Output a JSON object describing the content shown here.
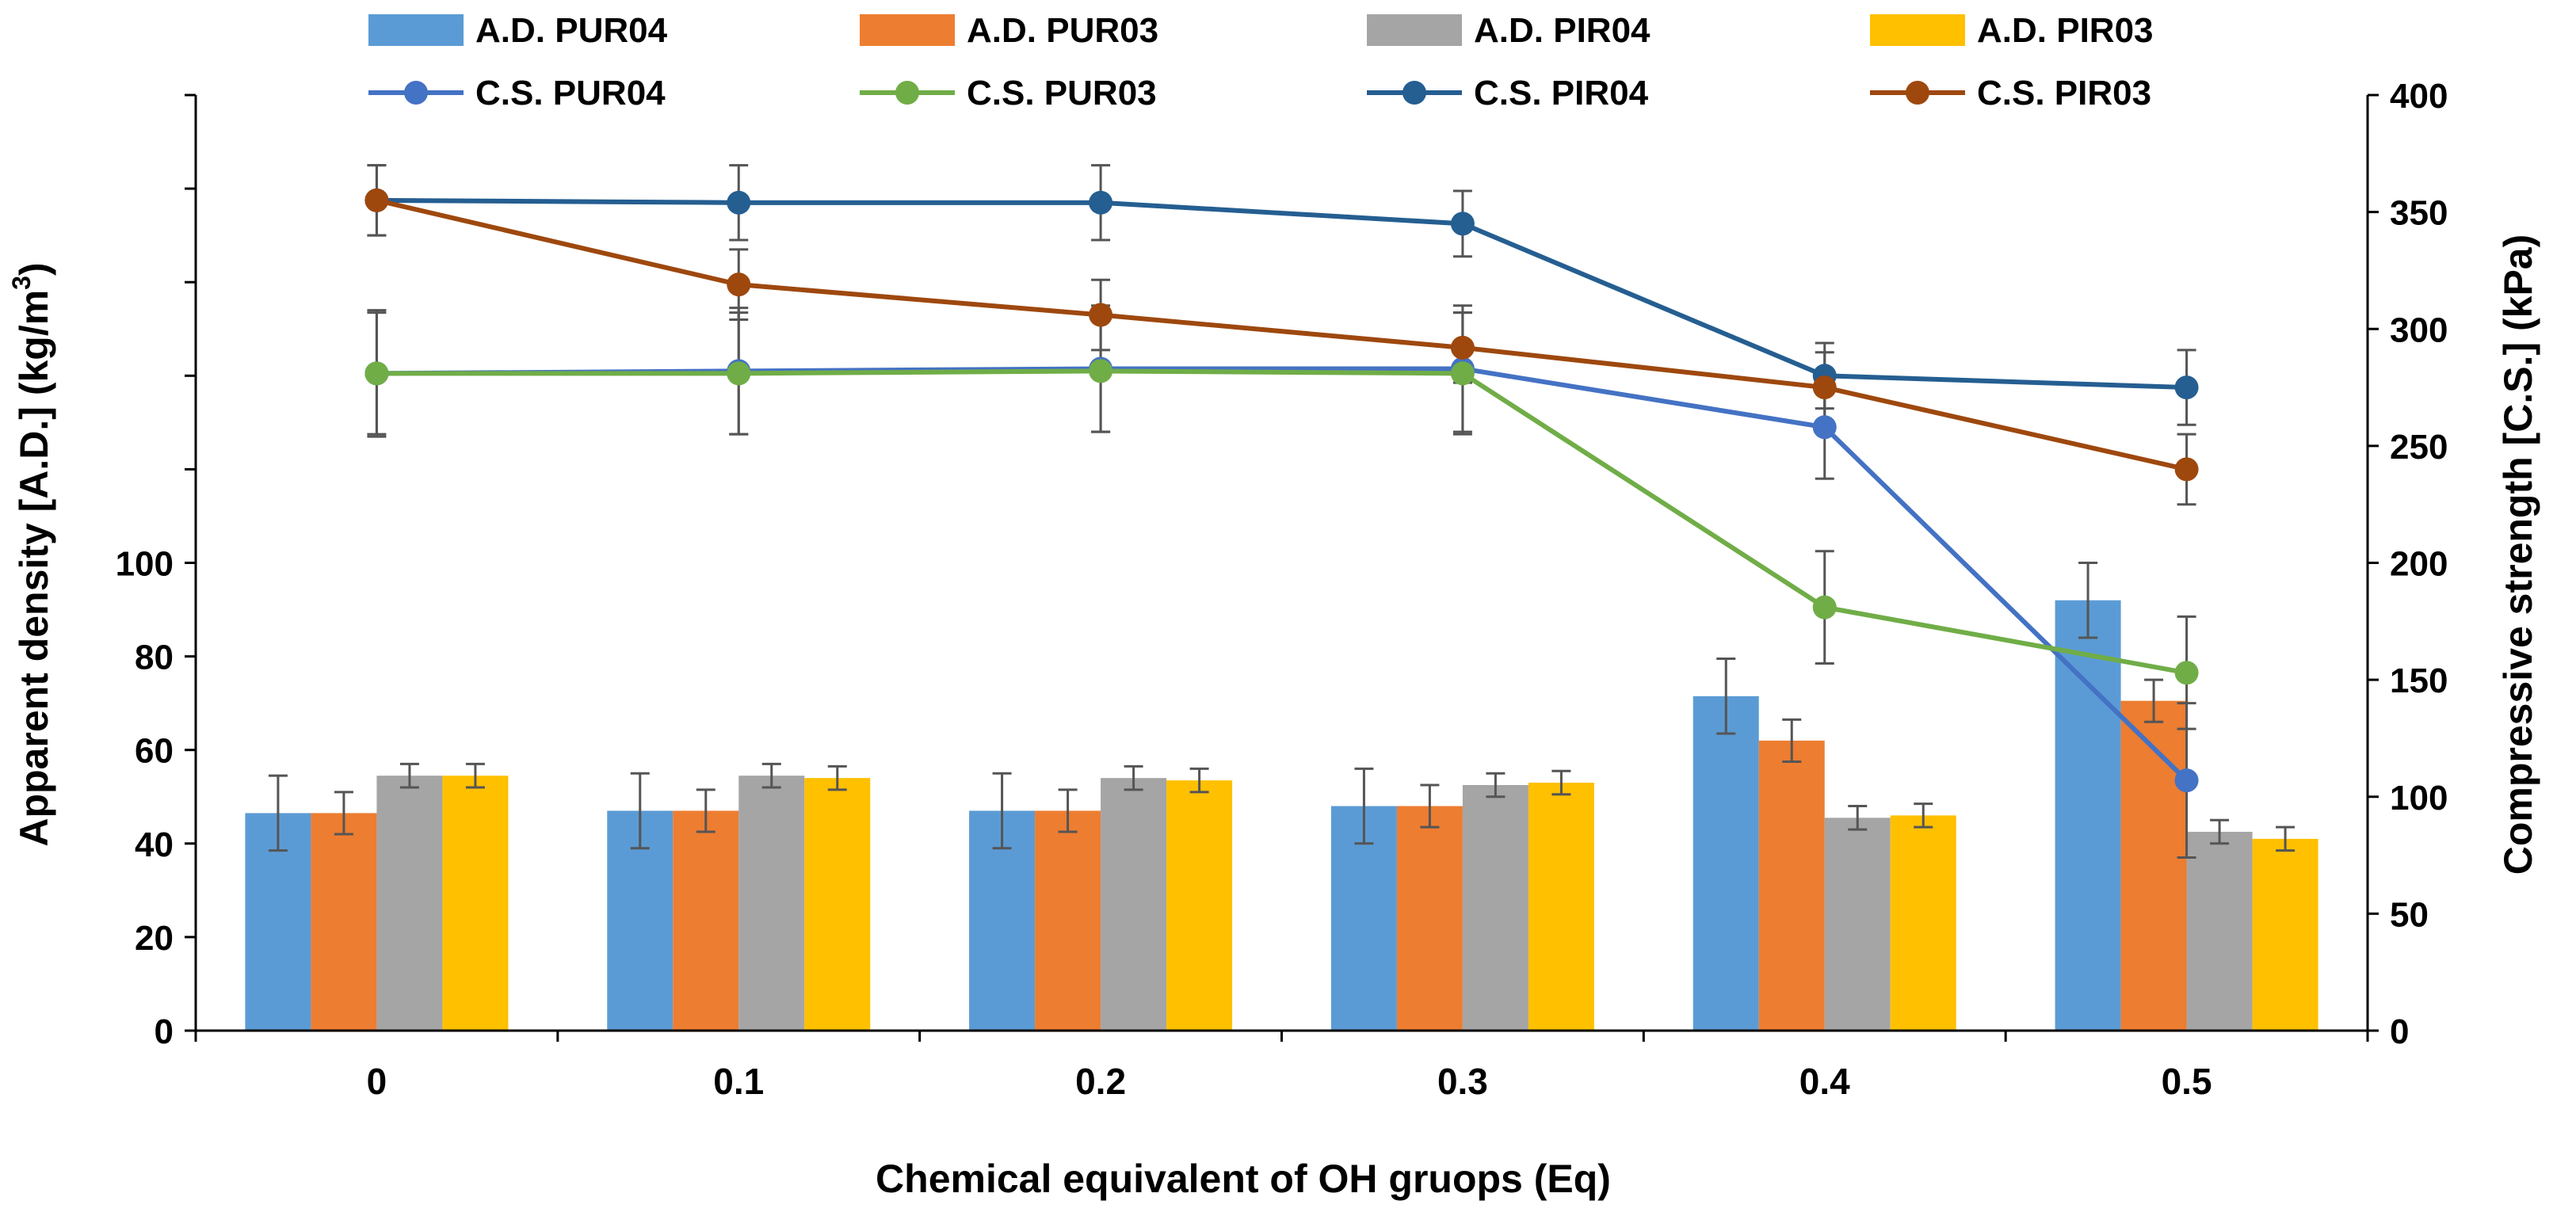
{
  "chart_data": {
    "type": "bar+line",
    "x": {
      "label": "Chemical equivalent of OH gruops (Eq)",
      "categories": [
        "0",
        "0.1",
        "0.2",
        "0.3",
        "0.4",
        "0.5"
      ]
    },
    "y_left": {
      "label_main": "Apparent density [A.D.] (kg/m",
      "label_sup": "3",
      "label_end": ")",
      "range": [
        0,
        200
      ],
      "ticks": [
        0,
        20,
        40,
        60,
        80,
        100
      ],
      "tick_labels": [
        "0",
        "20",
        "40",
        "60",
        "80",
        "100"
      ]
    },
    "y_right": {
      "label": "Compressive strength [C.S.] (kPa)",
      "range": [
        0,
        400
      ],
      "ticks": [
        0,
        50,
        100,
        150,
        200,
        250,
        300,
        350,
        400
      ],
      "tick_labels": [
        "0",
        "50",
        "100",
        "150",
        "200",
        "250",
        "300",
        "350",
        "400"
      ]
    },
    "bar_series": [
      {
        "name": "A.D. PUR04",
        "color": "#5B9BD5",
        "values": [
          46.5,
          47,
          47,
          48,
          71.5,
          92
        ],
        "errors": [
          8,
          8,
          8,
          8,
          8,
          8
        ]
      },
      {
        "name": "A.D. PUR03",
        "color": "#ED7D31",
        "values": [
          46.5,
          47,
          47,
          48,
          62,
          70.5
        ],
        "errors": [
          4.5,
          4.5,
          4.5,
          4.5,
          4.5,
          4.5
        ]
      },
      {
        "name": "A.D. PIR04",
        "color": "#A5A5A5",
        "values": [
          54.5,
          54.5,
          54,
          52.5,
          45.5,
          42.5
        ],
        "errors": [
          2.5,
          2.5,
          2.5,
          2.5,
          2.5,
          2.5
        ]
      },
      {
        "name": "A.D. PIR03",
        "color": "#FFC000",
        "values": [
          54.5,
          54,
          53.5,
          53,
          46,
          41
        ],
        "errors": [
          2.5,
          2.5,
          2.5,
          2.5,
          2.5,
          2.5
        ]
      }
    ],
    "line_series": [
      {
        "name": "C.S. PUR04",
        "color": "#4472C4",
        "values": [
          281,
          282,
          283,
          283,
          258,
          107
        ],
        "errors": [
          27,
          27,
          27,
          27,
          22,
          33
        ]
      },
      {
        "name": "C.S. PUR03",
        "color": "#70AD47",
        "values": [
          281,
          281,
          282,
          281,
          181,
          153
        ],
        "errors": [
          26,
          26,
          26,
          26,
          24,
          24
        ]
      },
      {
        "name": "C.S. PIR04",
        "color": "#255E91",
        "values": [
          355,
          354,
          354,
          345,
          280,
          275
        ],
        "errors": [
          15,
          16,
          16,
          14,
          14,
          16
        ]
      },
      {
        "name": "C.S. PIR03",
        "color": "#9E480E",
        "values": [
          355,
          319,
          306,
          292,
          275,
          240
        ],
        "errors": [
          15,
          15,
          15,
          15,
          15,
          15
        ]
      }
    ],
    "legend_position": "top",
    "grid": false
  }
}
